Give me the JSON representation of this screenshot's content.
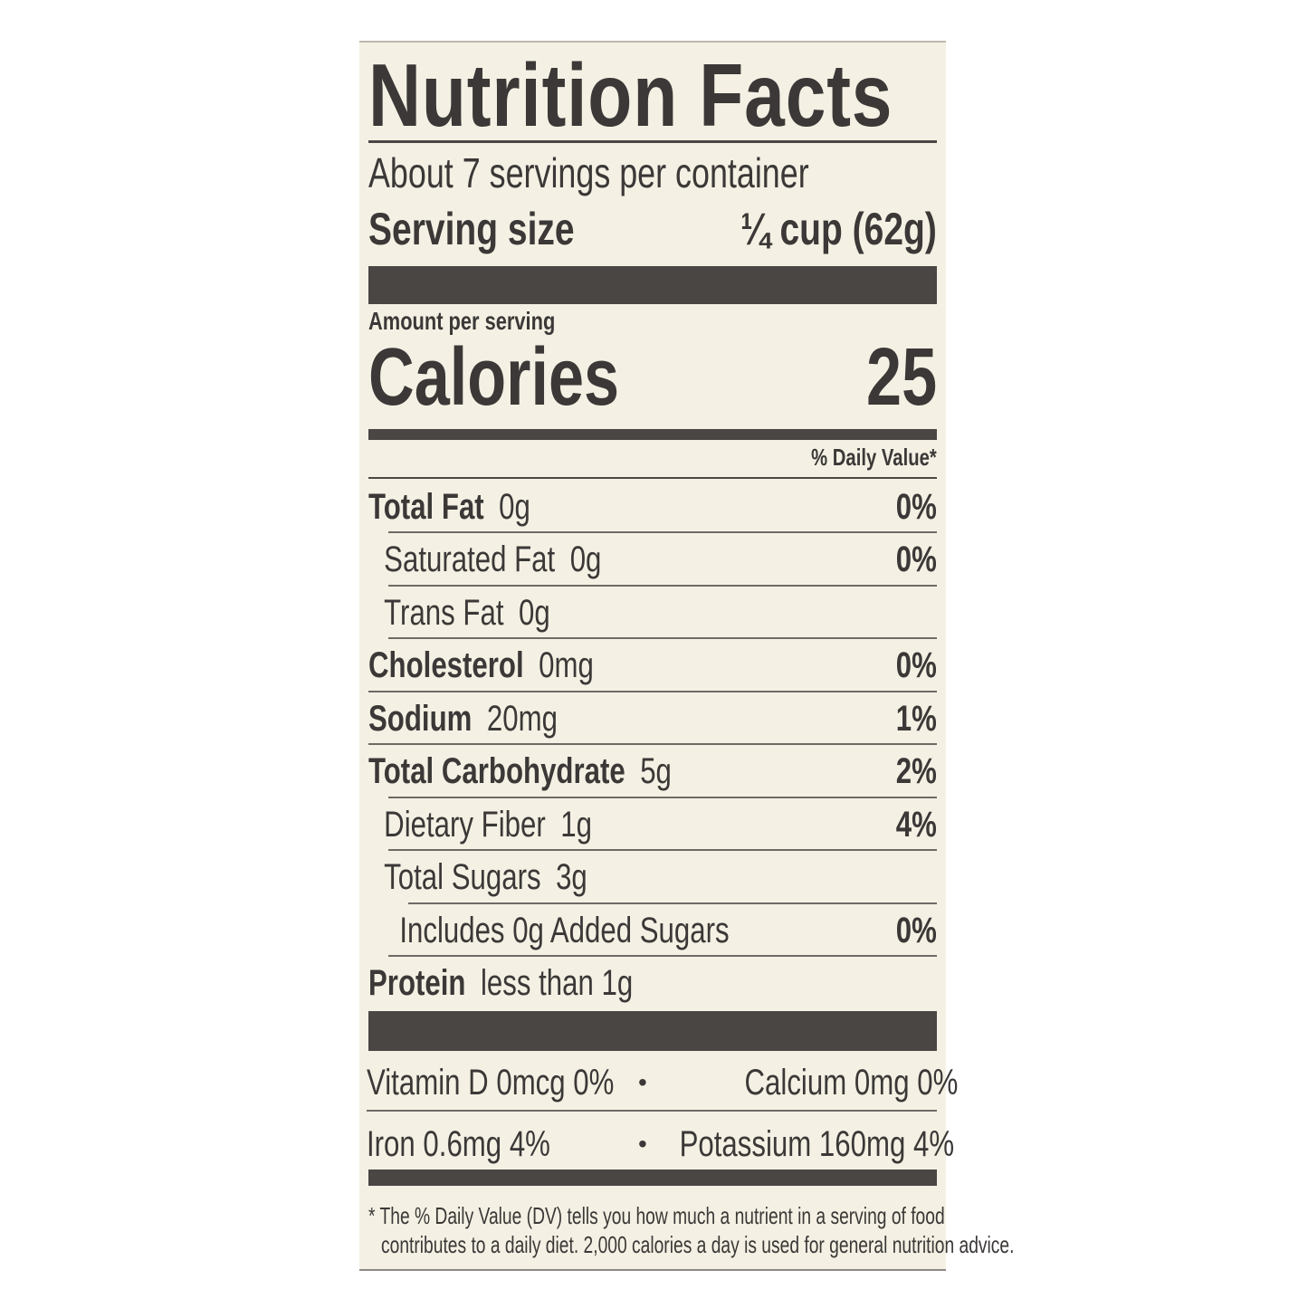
{
  "title": "Nutrition Facts",
  "servings_per_container": "About 7 servings per container",
  "serving_size": {
    "label": "Serving size",
    "value": "1/4 cup (62g)",
    "display": "¼ cup (62g)"
  },
  "amount_per_serving": "Amount per serving",
  "calories": {
    "label": "Calories",
    "value": "25"
  },
  "daily_value_header": "% Daily Value*",
  "nutrients": [
    {
      "name": "Total Fat",
      "amount": "0g",
      "dv": "0%",
      "bold": true,
      "indent": 0
    },
    {
      "name": "Saturated Fat",
      "amount": "0g",
      "dv": "0%",
      "bold": false,
      "indent": 1
    },
    {
      "name": "Trans Fat",
      "amount": "0g",
      "dv": "",
      "bold": false,
      "indent": 1
    },
    {
      "name": "Cholesterol",
      "amount": "0mg",
      "dv": "0%",
      "bold": true,
      "indent": 0
    },
    {
      "name": "Sodium",
      "amount": "20mg",
      "dv": "1%",
      "bold": true,
      "indent": 0
    },
    {
      "name": "Total Carbohydrate",
      "amount": "5g",
      "dv": "2%",
      "bold": true,
      "indent": 0
    },
    {
      "name": "Dietary Fiber",
      "amount": "1g",
      "dv": "4%",
      "bold": false,
      "indent": 1
    },
    {
      "name": "Total Sugars",
      "amount": "3g",
      "dv": "",
      "bold": false,
      "indent": 1
    },
    {
      "name": "Includes 0g Added Sugars",
      "amount": "",
      "dv": "0%",
      "bold": false,
      "indent": 2
    },
    {
      "name": "Protein",
      "amount": "less than 1g",
      "dv": "",
      "bold": true,
      "indent": 0
    }
  ],
  "vitamins": [
    {
      "left": "Vitamin D  0mcg  0%",
      "bullet": "•",
      "right": "Calcium  0mg  0%"
    },
    {
      "left": "Iron  0.6mg  4%",
      "bullet": "•",
      "right": "Potassium  160mg  4%"
    }
  ],
  "footnote": [
    "* The % Daily Value (DV) tells you how much a nutrient in a serving of food",
    "contributes to a daily diet. 2,000 calories a day is used for general nutrition advice."
  ],
  "colors": {
    "background": "#f4f1e4",
    "ink": "#3b3837"
  }
}
